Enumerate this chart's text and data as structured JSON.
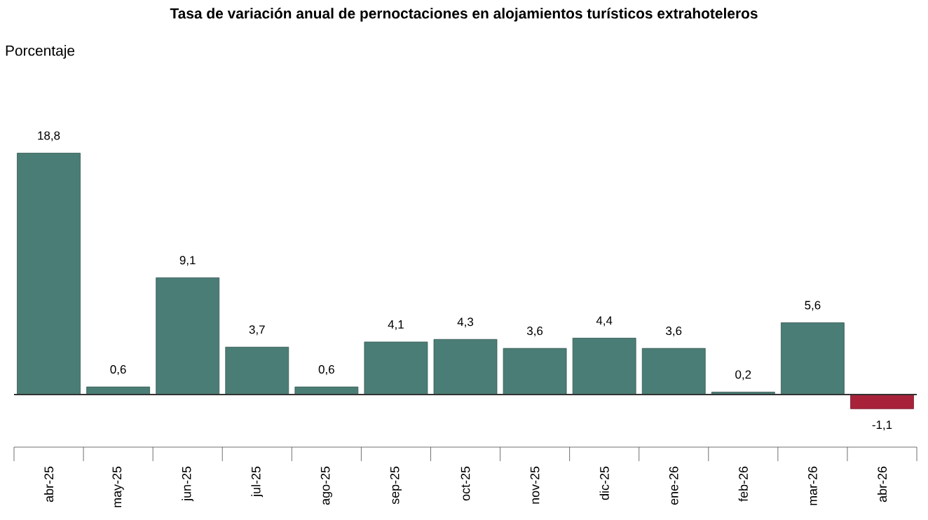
{
  "chart_data": {
    "type": "bar",
    "title": "Tasa de variación anual de pernoctaciones en alojamientos turísticos extrahoteleros",
    "annotations": [
      "Porcentaje"
    ],
    "categories": [
      "abr-25",
      "may-25",
      "jun-25",
      "jul-25",
      "ago-25",
      "sep-25",
      "oct-25",
      "nov-25",
      "dic-25",
      "ene-26",
      "feb-26",
      "mar-26",
      "abr-26"
    ],
    "values": [
      18.8,
      0.6,
      9.1,
      3.7,
      0.6,
      4.1,
      4.3,
      3.6,
      4.4,
      3.6,
      0.2,
      5.6,
      -1.1
    ],
    "colors": [
      "#4a7d75",
      "#4a7d75",
      "#4a7d75",
      "#4a7d75",
      "#4a7d75",
      "#4a7d75",
      "#4a7d75",
      "#4a7d75",
      "#4a7d75",
      "#4a7d75",
      "#4a7d75",
      "#4a7d75",
      "#a8233a"
    ],
    "value_labels": [
      "18,8",
      "0,6",
      "9,1",
      "3,7",
      "0,6",
      "4,1",
      "4,3",
      "3,6",
      "4,4",
      "3,6",
      "0,2",
      "5,6",
      "-1,1"
    ]
  }
}
